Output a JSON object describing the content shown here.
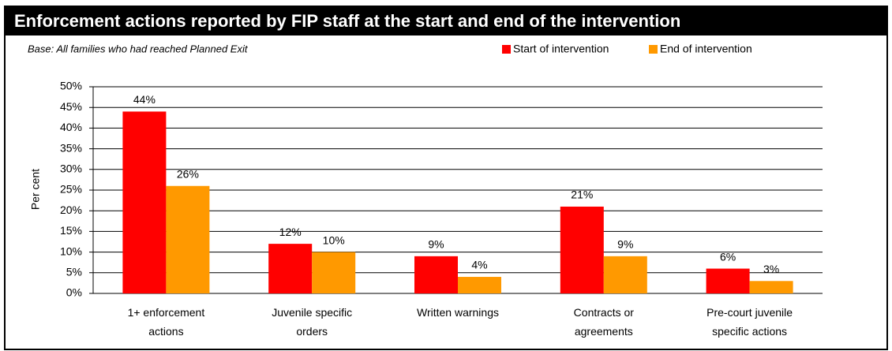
{
  "chart_data": {
    "type": "bar",
    "title": "Enforcement actions reported by FIP staff at the start and end of the intervention",
    "subtitle": "Base: All families who had reached Planned Exit",
    "y_label": "Per cent",
    "categories": [
      "1+ enforcement actions",
      "Juvenile specific orders",
      "Written warnings",
      "Contracts or agreements",
      "Pre-court juvenile specific actions"
    ],
    "series": [
      {
        "name": "Start of intervention",
        "color": "#ff0000",
        "values": [
          44,
          12,
          9,
          21,
          6
        ],
        "value_labels": [
          "44%",
          "12%",
          "9%",
          "21%",
          "6%"
        ]
      },
      {
        "name": "End of intervention",
        "color": "#ff9900",
        "values": [
          26,
          10,
          4,
          9,
          3
        ],
        "value_labels": [
          "26%",
          "10%",
          "4%",
          "9%",
          "3%"
        ]
      }
    ],
    "ylim": [
      0,
      50
    ],
    "yticks": [
      {
        "value": 0,
        "label": "0%"
      },
      {
        "value": 5,
        "label": "5%"
      },
      {
        "value": 10,
        "label": "10%"
      },
      {
        "value": 15,
        "label": "15%"
      },
      {
        "value": 20,
        "label": "20%"
      },
      {
        "value": 25,
        "label": "25%"
      },
      {
        "value": 30,
        "label": "30%"
      },
      {
        "value": 35,
        "label": "35%"
      },
      {
        "value": 40,
        "label": "40%"
      },
      {
        "value": 45,
        "label": "45%"
      },
      {
        "value": 50,
        "label": "50%"
      }
    ],
    "grid": true,
    "legend": "top-right"
  }
}
